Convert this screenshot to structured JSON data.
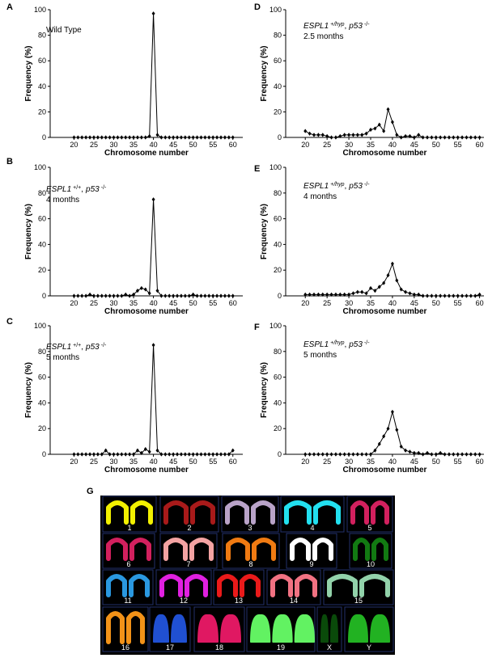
{
  "chart_data": [
    {
      "type": "line",
      "panel": "A",
      "annotation": [
        [
          {
            "text": "Wild Type"
          }
        ]
      ],
      "xlabel": "Chromosome number",
      "ylabel": "Frequency (%)",
      "x": [
        20,
        21,
        22,
        23,
        24,
        25,
        26,
        27,
        28,
        29,
        30,
        31,
        32,
        33,
        34,
        35,
        36,
        37,
        38,
        39,
        40,
        41,
        42,
        43,
        44,
        45,
        46,
        47,
        48,
        49,
        50,
        51,
        52,
        53,
        54,
        55,
        56,
        57,
        58,
        59,
        60
      ],
      "values": [
        0,
        0,
        0,
        0,
        0,
        0,
        0,
        0,
        0,
        0,
        0,
        0,
        0,
        0,
        0,
        0,
        0,
        0,
        0,
        1,
        97,
        2,
        0,
        0,
        0,
        0,
        0,
        0,
        0,
        0,
        0,
        0,
        0,
        0,
        0,
        0,
        0,
        0,
        0,
        0,
        0
      ],
      "xlim": [
        14,
        62.5
      ],
      "ylim": [
        0,
        100
      ],
      "xticks": [
        20,
        25,
        30,
        35,
        40,
        45,
        50,
        55,
        60
      ],
      "yticks": [
        0,
        20,
        40,
        60,
        80,
        100
      ],
      "color": "#000000"
    },
    {
      "type": "line",
      "panel": "B",
      "annotation": [
        [
          {
            "text": "ESPL1",
            "italic": true
          },
          {
            "text": "+/+",
            "sup": true
          },
          {
            "text": ","
          },
          {
            "text": "p53",
            "italic": true
          },
          {
            "text": "-/-",
            "sup": true
          }
        ],
        [
          {
            "text": "4 months"
          }
        ]
      ],
      "xlabel": "Chromosome number",
      "ylabel": "Frequency (%)",
      "x": [
        20,
        21,
        22,
        23,
        24,
        25,
        26,
        27,
        28,
        29,
        30,
        31,
        32,
        33,
        34,
        35,
        36,
        37,
        38,
        39,
        40,
        41,
        42,
        43,
        44,
        45,
        46,
        47,
        48,
        49,
        50,
        51,
        52,
        53,
        54,
        55,
        56,
        57,
        58,
        59,
        60
      ],
      "values": [
        0,
        0,
        0,
        0,
        1,
        0,
        0,
        0,
        0,
        0,
        0,
        0,
        0,
        1,
        0,
        1,
        4,
        6,
        5,
        2,
        75,
        4,
        0,
        0,
        0,
        0,
        0,
        0,
        0,
        0,
        1,
        0,
        0,
        0,
        0,
        0,
        0,
        0,
        0,
        0,
        0
      ],
      "xlim": [
        14,
        62.5
      ],
      "ylim": [
        0,
        100
      ],
      "xticks": [
        20,
        25,
        30,
        35,
        40,
        45,
        50,
        55,
        60
      ],
      "yticks": [
        0,
        20,
        40,
        60,
        80,
        100
      ],
      "color": "#000000"
    },
    {
      "type": "line",
      "panel": "C",
      "annotation": [
        [
          {
            "text": "ESPL1",
            "italic": true
          },
          {
            "text": "+/+",
            "sup": true
          },
          {
            "text": ","
          },
          {
            "text": "p53",
            "italic": true
          },
          {
            "text": "-/-",
            "sup": true
          }
        ],
        [
          {
            "text": "5 months"
          }
        ]
      ],
      "xlabel": "Chromosome number",
      "ylabel": "Frequency (%)",
      "x": [
        20,
        21,
        22,
        23,
        24,
        25,
        26,
        27,
        28,
        29,
        30,
        31,
        32,
        33,
        34,
        35,
        36,
        37,
        38,
        39,
        40,
        41,
        42,
        43,
        44,
        45,
        46,
        47,
        48,
        49,
        50,
        51,
        52,
        53,
        54,
        55,
        56,
        57,
        58,
        59,
        60
      ],
      "values": [
        0,
        0,
        0,
        0,
        0,
        0,
        0,
        0,
        3,
        0,
        0,
        0,
        0,
        0,
        0,
        0,
        3,
        1,
        4,
        2,
        85,
        3,
        0,
        0,
        0,
        0,
        0,
        0,
        0,
        0,
        0,
        0,
        0,
        0,
        0,
        0,
        0,
        0,
        0,
        0,
        3
      ],
      "xlim": [
        14,
        62.5
      ],
      "ylim": [
        0,
        100
      ],
      "xticks": [
        20,
        25,
        30,
        35,
        40,
        45,
        50,
        55,
        60
      ],
      "yticks": [
        0,
        20,
        40,
        60,
        80,
        100
      ],
      "color": "#000000"
    },
    {
      "type": "line",
      "panel": "D",
      "annotation": [
        [
          {
            "text": "ESPL1",
            "italic": true
          },
          {
            "text": "+/hyp",
            "sup": true,
            "italic": true
          },
          {
            "text": ","
          },
          {
            "text": "p53",
            "italic": true
          },
          {
            "text": "-/-",
            "sup": true
          }
        ],
        [
          {
            "text": "2.5 months"
          }
        ]
      ],
      "xlabel": "Chromosome number",
      "ylabel": "Frequency (%)",
      "x": [
        20,
        21,
        22,
        23,
        24,
        25,
        26,
        27,
        28,
        29,
        30,
        31,
        32,
        33,
        34,
        35,
        36,
        37,
        38,
        39,
        40,
        41,
        42,
        43,
        44,
        45,
        46,
        47,
        48,
        49,
        50,
        51,
        52,
        53,
        54,
        55,
        56,
        57,
        58,
        59,
        60
      ],
      "values": [
        5,
        3,
        2,
        2,
        2,
        1,
        0,
        0,
        1,
        2,
        2,
        2,
        2,
        2,
        3,
        6,
        7,
        10,
        5,
        22,
        12,
        2,
        0,
        1,
        1,
        0,
        2,
        0,
        0,
        0,
        0,
        0,
        0,
        0,
        0,
        0,
        0,
        0,
        0,
        0,
        0
      ],
      "xlim": [
        15.5,
        61
      ],
      "ylim": [
        0,
        100
      ],
      "xticks": [
        20,
        25,
        30,
        35,
        40,
        45,
        50,
        55,
        60
      ],
      "yticks": [
        0,
        20,
        40,
        60,
        80,
        100
      ],
      "color": "#000000"
    },
    {
      "type": "line",
      "panel": "E",
      "annotation": [
        [
          {
            "text": "ESPL1",
            "italic": true
          },
          {
            "text": "+/hyp",
            "sup": true,
            "italic": true
          },
          {
            "text": ","
          },
          {
            "text": "p53",
            "italic": true
          },
          {
            "text": "-/-",
            "sup": true
          }
        ],
        [
          {
            "text": "4 months"
          }
        ]
      ],
      "xlabel": "Chromosome number",
      "ylabel": "Frequency (%)",
      "x": [
        20,
        21,
        22,
        23,
        24,
        25,
        26,
        27,
        28,
        29,
        30,
        31,
        32,
        33,
        34,
        35,
        36,
        37,
        38,
        39,
        40,
        41,
        42,
        43,
        44,
        45,
        46,
        47,
        48,
        49,
        50,
        51,
        52,
        53,
        54,
        55,
        56,
        57,
        58,
        59,
        60
      ],
      "values": [
        1,
        1,
        1,
        1,
        1,
        1,
        1,
        1,
        1,
        1,
        1,
        2,
        3,
        3,
        2,
        6,
        4,
        7,
        10,
        16,
        25,
        12,
        5,
        3,
        2,
        1,
        1,
        0,
        0,
        0,
        0,
        0,
        0,
        0,
        0,
        0,
        0,
        0,
        0,
        0,
        1
      ],
      "xlim": [
        15.5,
        61
      ],
      "ylim": [
        0,
        100
      ],
      "xticks": [
        20,
        25,
        30,
        35,
        40,
        45,
        50,
        55,
        60
      ],
      "yticks": [
        0,
        20,
        40,
        60,
        80,
        100
      ],
      "color": "#000000"
    },
    {
      "type": "line",
      "panel": "F",
      "annotation": [
        [
          {
            "text": "ESPL1",
            "italic": true
          },
          {
            "text": "+/hyp",
            "sup": true,
            "italic": true
          },
          {
            "text": ","
          },
          {
            "text": "p53",
            "italic": true
          },
          {
            "text": "-/-",
            "sup": true
          }
        ],
        [
          {
            "text": "5 months"
          }
        ]
      ],
      "xlabel": "Chromosome number",
      "ylabel": "Frequency (%)",
      "x": [
        20,
        21,
        22,
        23,
        24,
        25,
        26,
        27,
        28,
        29,
        30,
        31,
        32,
        33,
        34,
        35,
        36,
        37,
        38,
        39,
        40,
        41,
        42,
        43,
        44,
        45,
        46,
        47,
        48,
        49,
        50,
        51,
        52,
        53,
        54,
        55,
        56,
        57,
        58,
        59,
        60
      ],
      "values": [
        0,
        0,
        0,
        0,
        0,
        0,
        0,
        0,
        0,
        0,
        0,
        0,
        0,
        0,
        0,
        0,
        3,
        8,
        14,
        20,
        33,
        19,
        6,
        3,
        2,
        1,
        1,
        0,
        1,
        0,
        0,
        1,
        0,
        0,
        0,
        0,
        0,
        0,
        0,
        0,
        0
      ],
      "xlim": [
        15.5,
        61
      ],
      "ylim": [
        0,
        100
      ],
      "xticks": [
        20,
        25,
        30,
        35,
        40,
        45,
        50,
        55,
        60
      ],
      "yticks": [
        0,
        20,
        40,
        60,
        80,
        100
      ],
      "color": "#000000"
    }
  ],
  "karyotype": {
    "panel": "G",
    "labels": [
      "1",
      "2",
      "3",
      "4",
      "5",
      "6",
      "7",
      "8",
      "9",
      "10",
      "11",
      "12",
      "13",
      "14",
      "15",
      "16",
      "17",
      "18",
      "19",
      "X",
      "Y"
    ],
    "colors": [
      "#f2f000",
      "#a81a1a",
      "#b9a3c8",
      "#22e0f0",
      "#d2205e",
      "#d2205e",
      "#f4a3a3",
      "#f07a12",
      "#ffffff",
      "#127a12",
      "#2a98e0",
      "#e020e0",
      "#ea1a1a",
      "#f27282",
      "#92d2aa",
      "#f29218",
      "#2050d2",
      "#e01862",
      "#62f262",
      "#0a4a0a",
      "#22b222"
    ]
  }
}
